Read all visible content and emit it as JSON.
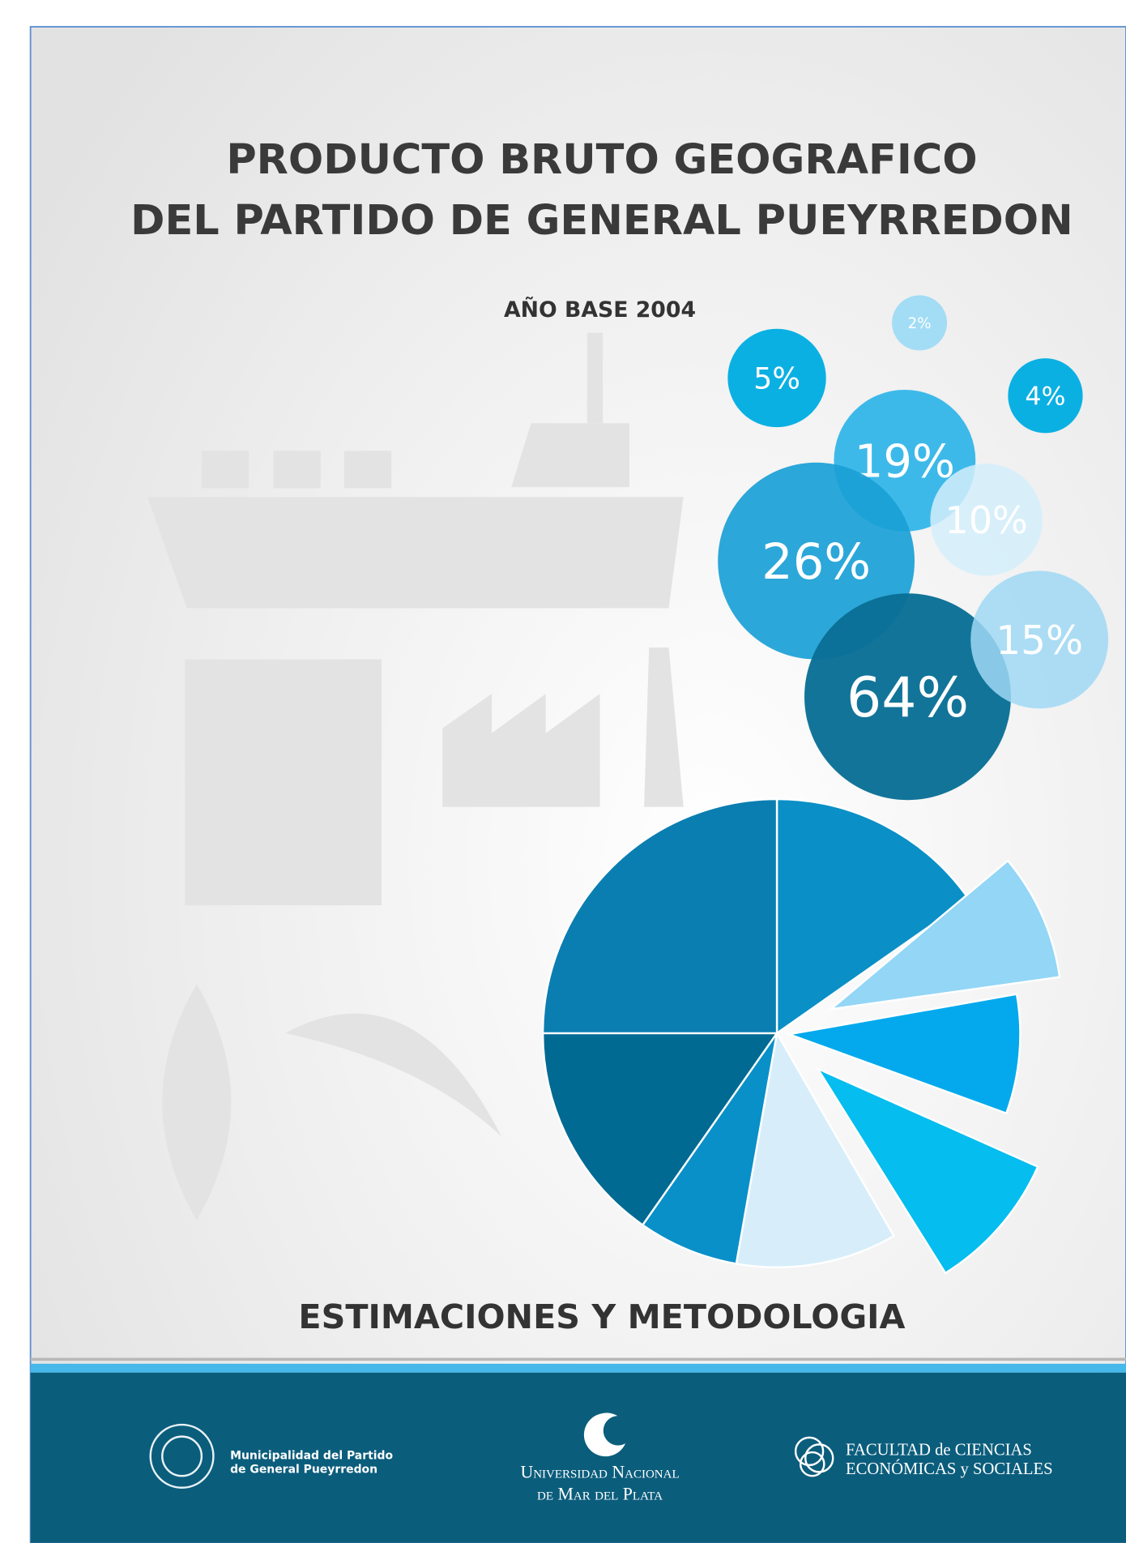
{
  "header": {
    "title_lines": [
      "PRODUCTO BRUTO GEOGRAFICO",
      "DEL PARTIDO DE GENERAL PUEYRREDON"
    ],
    "subtitle": "AÑO BASE 2004"
  },
  "bubbles": [
    "5%",
    "2%",
    "4%",
    "19%",
    "10%",
    "26%",
    "64%",
    "15%"
  ],
  "footer_title": "ESTIMACIONES Y METODOLOGIA",
  "logos": [
    {
      "lines": [
        "Municipalidad del Partido",
        "de General Pueyrredon"
      ]
    },
    {
      "lines": [
        "Universidad Nacional",
        "de Mar del Plata"
      ]
    },
    {
      "lines": [
        "FACULTAD de CIENCIAS",
        "ECONÓMICAS y SOCIALES"
      ]
    }
  ]
}
